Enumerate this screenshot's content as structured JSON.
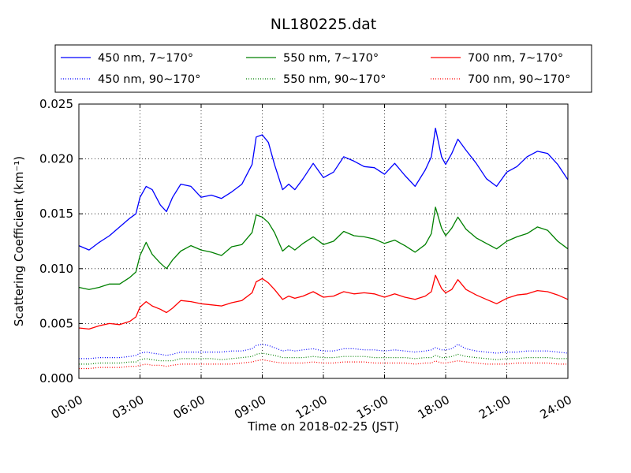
{
  "chart_data": {
    "type": "line",
    "title": "NL180225.dat",
    "xlabel": "Time on 2018-02-25 (JST)",
    "ylabel": "Scattering Coefficient (km⁻¹)",
    "xlim_hours": [
      0,
      24
    ],
    "ylim": [
      0,
      0.025
    ],
    "x_tick_labels": [
      "00:00",
      "03:00",
      "06:00",
      "09:00",
      "12:00",
      "15:00",
      "18:00",
      "21:00",
      "24:00"
    ],
    "y_tick_labels": [
      "0.000",
      "0.005",
      "0.010",
      "0.015",
      "0.020",
      "0.025"
    ],
    "grid": true,
    "legend_position": "top, outside plot, 3 columns",
    "x_hours": [
      0,
      0.5,
      1,
      1.5,
      2,
      2.5,
      2.8,
      3,
      3.3,
      3.6,
      4,
      4.3,
      4.6,
      5,
      5.5,
      6,
      6.5,
      7,
      7.5,
      8,
      8.5,
      8.7,
      9,
      9.3,
      9.6,
      10,
      10.3,
      10.6,
      11,
      11.5,
      12,
      12.5,
      13,
      13.5,
      14,
      14.5,
      15,
      15.5,
      16,
      16.5,
      17,
      17.3,
      17.5,
      17.8,
      18,
      18.3,
      18.6,
      19,
      19.5,
      20,
      20.5,
      21,
      21.5,
      22,
      22.5,
      23,
      23.5,
      24
    ],
    "series": [
      {
        "name": "450 nm, 7∼170°",
        "color": "#0000ff",
        "style": "solid",
        "values": [
          0.0121,
          0.0117,
          0.0124,
          0.013,
          0.0138,
          0.0146,
          0.015,
          0.0165,
          0.0175,
          0.0172,
          0.0158,
          0.0152,
          0.0165,
          0.0177,
          0.0175,
          0.0165,
          0.0167,
          0.0164,
          0.017,
          0.0177,
          0.0195,
          0.022,
          0.0222,
          0.0215,
          0.0195,
          0.0172,
          0.0177,
          0.0172,
          0.0182,
          0.0196,
          0.0183,
          0.0188,
          0.0202,
          0.0198,
          0.0193,
          0.0192,
          0.0186,
          0.0196,
          0.0185,
          0.0175,
          0.019,
          0.0202,
          0.0228,
          0.0202,
          0.0195,
          0.0205,
          0.0218,
          0.0208,
          0.0196,
          0.0182,
          0.0175,
          0.0188,
          0.0193,
          0.0202,
          0.0207,
          0.0205,
          0.0195,
          0.0181
        ]
      },
      {
        "name": "550 nm, 7∼170°",
        "color": "#008000",
        "style": "solid",
        "values": [
          0.0083,
          0.0081,
          0.0083,
          0.0086,
          0.0086,
          0.0092,
          0.0097,
          0.0112,
          0.0124,
          0.0113,
          0.0105,
          0.01,
          0.0108,
          0.0116,
          0.0121,
          0.0117,
          0.0115,
          0.0112,
          0.012,
          0.0122,
          0.0133,
          0.0149,
          0.0147,
          0.0142,
          0.0133,
          0.0116,
          0.0121,
          0.0117,
          0.0123,
          0.0129,
          0.0122,
          0.0125,
          0.0134,
          0.013,
          0.0129,
          0.0127,
          0.0123,
          0.0126,
          0.0121,
          0.0115,
          0.0122,
          0.0132,
          0.0156,
          0.0137,
          0.013,
          0.0137,
          0.0147,
          0.0136,
          0.0128,
          0.0123,
          0.0118,
          0.0125,
          0.0129,
          0.0132,
          0.0138,
          0.0135,
          0.0125,
          0.0118
        ]
      },
      {
        "name": "700 nm, 7∼170°",
        "color": "#ff0000",
        "style": "solid",
        "values": [
          0.0046,
          0.0045,
          0.0048,
          0.005,
          0.0049,
          0.0052,
          0.0056,
          0.0065,
          0.007,
          0.0066,
          0.0063,
          0.006,
          0.0064,
          0.0071,
          0.007,
          0.0068,
          0.0067,
          0.0066,
          0.0069,
          0.0071,
          0.0078,
          0.0088,
          0.0091,
          0.0087,
          0.0081,
          0.0072,
          0.0075,
          0.0073,
          0.0075,
          0.0079,
          0.0074,
          0.0075,
          0.0079,
          0.0077,
          0.0078,
          0.0077,
          0.0074,
          0.0077,
          0.0074,
          0.0072,
          0.0075,
          0.0079,
          0.0094,
          0.0082,
          0.0078,
          0.0081,
          0.009,
          0.0081,
          0.0076,
          0.0072,
          0.0068,
          0.0073,
          0.0076,
          0.0077,
          0.008,
          0.0079,
          0.0076,
          0.0072
        ]
      },
      {
        "name": "450 nm, 90∼170°",
        "color": "#0000ff",
        "style": "dotted",
        "values": [
          0.0018,
          0.0018,
          0.0019,
          0.0019,
          0.0019,
          0.002,
          0.0021,
          0.0023,
          0.0024,
          0.0023,
          0.0022,
          0.0021,
          0.0022,
          0.0024,
          0.0024,
          0.0024,
          0.0024,
          0.0024,
          0.0025,
          0.0025,
          0.0027,
          0.003,
          0.0031,
          0.003,
          0.0028,
          0.0025,
          0.0026,
          0.0025,
          0.0026,
          0.0027,
          0.0025,
          0.0025,
          0.0027,
          0.0027,
          0.0026,
          0.0026,
          0.0025,
          0.0026,
          0.0025,
          0.0024,
          0.0025,
          0.0026,
          0.0028,
          0.0026,
          0.0026,
          0.0027,
          0.0031,
          0.0027,
          0.0025,
          0.0024,
          0.0023,
          0.0024,
          0.0024,
          0.0025,
          0.0025,
          0.0025,
          0.0024,
          0.0023
        ]
      },
      {
        "name": "550 nm, 90∼170°",
        "color": "#008000",
        "style": "dotted",
        "values": [
          0.0013,
          0.0013,
          0.0014,
          0.0014,
          0.0014,
          0.0015,
          0.0015,
          0.0017,
          0.0018,
          0.0017,
          0.0016,
          0.0016,
          0.0016,
          0.0018,
          0.0018,
          0.0018,
          0.0018,
          0.0017,
          0.0018,
          0.0019,
          0.002,
          0.0022,
          0.0023,
          0.0022,
          0.0021,
          0.0019,
          0.0019,
          0.0019,
          0.0019,
          0.002,
          0.0019,
          0.0019,
          0.002,
          0.002,
          0.002,
          0.0019,
          0.0019,
          0.0019,
          0.0019,
          0.0018,
          0.0019,
          0.0019,
          0.0021,
          0.0019,
          0.0019,
          0.002,
          0.0022,
          0.002,
          0.0019,
          0.0018,
          0.0017,
          0.0018,
          0.0018,
          0.0019,
          0.0019,
          0.0019,
          0.0018,
          0.0018
        ]
      },
      {
        "name": "700 nm, 90∼170°",
        "color": "#ff0000",
        "style": "dotted",
        "values": [
          0.0009,
          0.0009,
          0.001,
          0.001,
          0.001,
          0.0011,
          0.0011,
          0.0012,
          0.0013,
          0.0012,
          0.0012,
          0.0011,
          0.0012,
          0.0013,
          0.0013,
          0.0013,
          0.0013,
          0.0013,
          0.0013,
          0.0014,
          0.0015,
          0.0016,
          0.0017,
          0.0016,
          0.0015,
          0.0014,
          0.0014,
          0.0014,
          0.0014,
          0.0015,
          0.0014,
          0.0014,
          0.0015,
          0.0015,
          0.0015,
          0.0014,
          0.0014,
          0.0014,
          0.0014,
          0.0013,
          0.0014,
          0.0014,
          0.0016,
          0.0014,
          0.0014,
          0.0015,
          0.0016,
          0.0015,
          0.0014,
          0.0013,
          0.0013,
          0.0013,
          0.0014,
          0.0014,
          0.0014,
          0.0014,
          0.0013,
          0.0013
        ]
      }
    ]
  }
}
